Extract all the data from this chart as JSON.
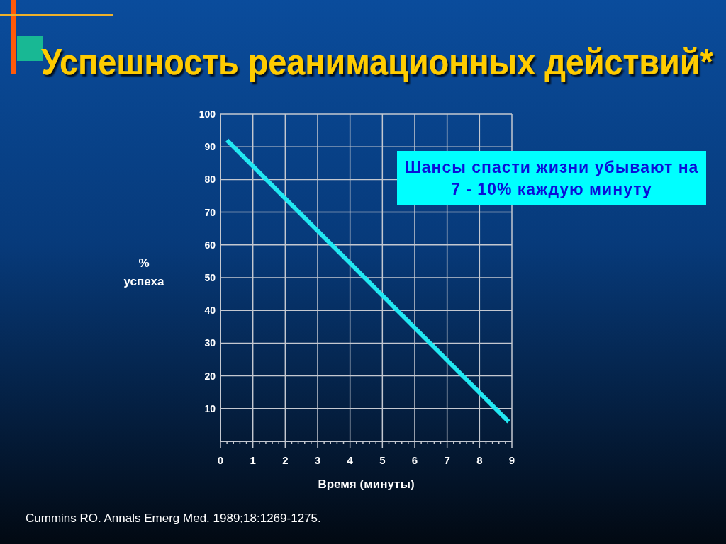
{
  "chart_data": {
    "type": "line",
    "title": "Успешность реанимационных действий*",
    "xlabel": "Время (минуты)",
    "ylabel": "% успеха",
    "annotations": [
      "Шансы спасти жизни убывают на 7 - 10% каждую минуту",
      "Cummins RO. Annals Emerg Med. 1989;18:1269-1275."
    ],
    "series": [
      {
        "color": "#22e8f2",
        "x": [
          0.2,
          8.9
        ],
        "values": [
          92,
          6
        ]
      }
    ],
    "xlim": [
      0,
      9
    ],
    "ylim": [
      0,
      100
    ],
    "xticks": [
      0,
      {
        "value": 0.2,
        "label": null
      },
      {
        "value": 0.4,
        "label": null
      },
      {
        "value": 0.6,
        "label": null
      },
      {
        "value": 0.8,
        "label": null
      },
      1,
      {
        "value": 1.2,
        "label": null
      },
      {
        "value": 1.4,
        "label": null
      },
      {
        "value": 1.6,
        "label": null
      },
      {
        "value": 1.8,
        "label": null
      },
      2,
      {
        "value": 2.2,
        "label": null
      },
      {
        "value": 2.4,
        "label": null
      },
      {
        "value": 2.6,
        "label": null
      },
      {
        "value": 2.8,
        "label": null
      },
      3,
      {
        "value": 3.2,
        "label": null
      },
      {
        "value": 3.4,
        "label": null
      },
      {
        "value": 3.6,
        "label": null
      },
      {
        "value": 3.8,
        "label": null
      },
      4,
      {
        "value": 4.2,
        "label": null
      },
      {
        "value": 4.4,
        "label": null
      },
      {
        "value": 4.6,
        "label": null
      },
      {
        "value": 4.8,
        "label": null
      },
      5,
      {
        "value": 5.2,
        "label": null
      },
      {
        "value": 5.4,
        "label": null
      },
      {
        "value": 5.6,
        "label": null
      },
      {
        "value": 5.8,
        "label": null
      },
      6,
      {
        "value": 6.2,
        "label": null
      },
      {
        "value": 6.4,
        "label": null
      },
      {
        "value": 6.6,
        "label": null
      },
      {
        "value": 6.8,
        "label": null
      },
      7,
      {
        "value": 7.2,
        "label": null
      },
      {
        "value": 7.4,
        "label": null
      },
      {
        "value": 7.6,
        "label": null
      },
      {
        "value": 7.8,
        "label": null
      },
      8,
      {
        "value": 8.2,
        "label": null
      },
      {
        "value": 8.4,
        "label": null
      },
      {
        "value": 8.6,
        "label": null
      },
      {
        "value": 8.8,
        "label": null
      },
      9
    ],
    "yticks": [
      10,
      20,
      30,
      40,
      50,
      60,
      70,
      80,
      90,
      100
    ],
    "grid": true
  }
}
